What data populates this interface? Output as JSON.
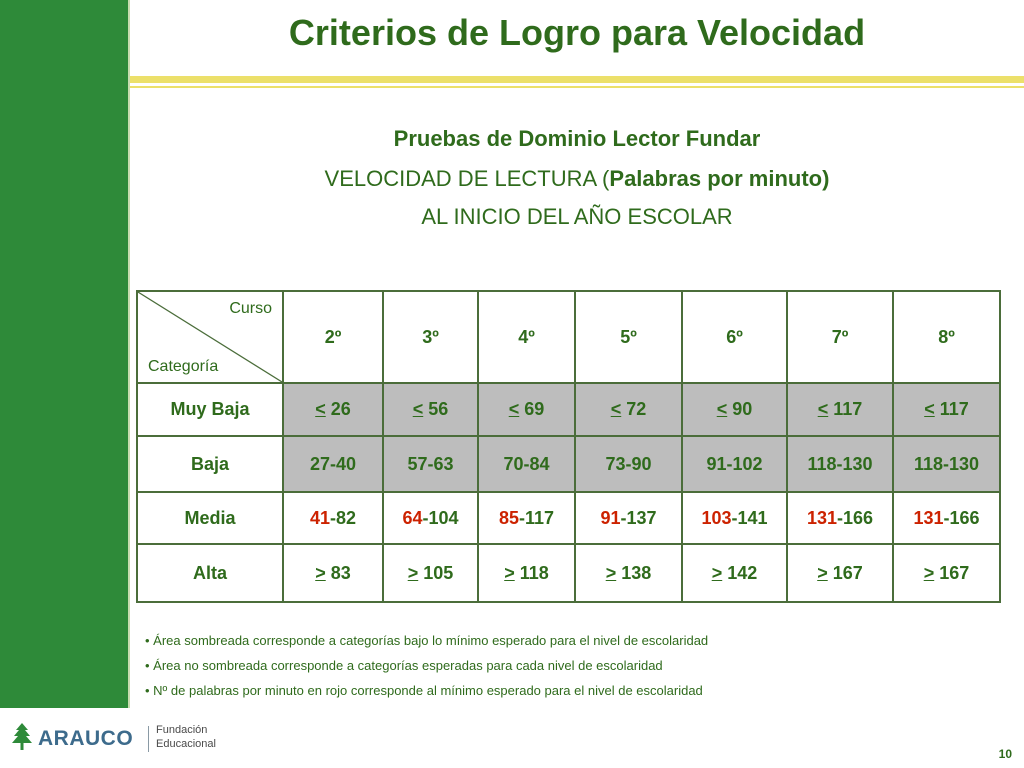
{
  "title": "Criterios de Logro para Velocidad",
  "subtitle": {
    "line1": "Pruebas de Dominio Lector Fundar",
    "line2_prefix": "VELOCIDAD DE LECTURA (",
    "line2_bold": "Palabras por minuto)",
    "line3": "AL INICIO DEL AÑO ESCOLAR"
  },
  "table": {
    "corner_top": "Curso",
    "corner_bottom": "Categoría",
    "grades": [
      "2º",
      "3º",
      "4º",
      "5º",
      "6º",
      "7º",
      "8º"
    ],
    "rows": [
      {
        "label": "Muy Baja",
        "shaded": true,
        "cells": [
          {
            "op": "<",
            "value": "26"
          },
          {
            "op": "<",
            "value": "56"
          },
          {
            "op": "<",
            "value": "69"
          },
          {
            "op": "<",
            "value": "72"
          },
          {
            "op": "<",
            "value": "90"
          },
          {
            "op": "<",
            "value": "117"
          },
          {
            "op": "<",
            "value": "117"
          }
        ]
      },
      {
        "label": "Baja",
        "shaded": true,
        "cells": [
          {
            "value": "27-40"
          },
          {
            "value": "57-63"
          },
          {
            "value": "70-84"
          },
          {
            "value": "73-90"
          },
          {
            "value": "91-102"
          },
          {
            "value": "118-130"
          },
          {
            "value": "118-130"
          }
        ]
      },
      {
        "label": "Media",
        "shaded": false,
        "cells": [
          {
            "red": "41",
            "rest": "-82"
          },
          {
            "red": "64",
            "rest": "-104"
          },
          {
            "red": "85",
            "rest": "-117"
          },
          {
            "red": "91",
            "rest": "-137"
          },
          {
            "red": "103",
            "rest": "-141"
          },
          {
            "red": "131",
            "rest": "-166"
          },
          {
            "red": "131",
            "rest": "-166"
          }
        ]
      },
      {
        "label": "Alta",
        "shaded": false,
        "cells": [
          {
            "op": ">",
            "value": "83"
          },
          {
            "op": ">",
            "value": "105"
          },
          {
            "op": ">",
            "value": "118"
          },
          {
            "op": ">",
            "value": "138"
          },
          {
            "op": ">",
            "value": "142"
          },
          {
            "op": ">",
            "value": "167"
          },
          {
            "op": ">",
            "value": "167"
          }
        ]
      }
    ]
  },
  "notes": [
    "• Área sombreada corresponde a categorías bajo lo mínimo esperado para el nivel de escolaridad",
    "• Área no sombreada corresponde a categorías esperadas para cada nivel de escolaridad",
    "• Nº de palabras por minuto en rojo corresponde al mínimo esperado para el nivel de escolaridad"
  ],
  "logo": {
    "word": "ARAUCO",
    "line1": "Fundación",
    "line2": "Educacional"
  },
  "page_number": "10",
  "colors": {
    "sidebar": "#2e8a39",
    "title": "#2f6b1c",
    "rule": "#ece06a",
    "shade": "#bdbdbd",
    "red": "#cc2200"
  }
}
